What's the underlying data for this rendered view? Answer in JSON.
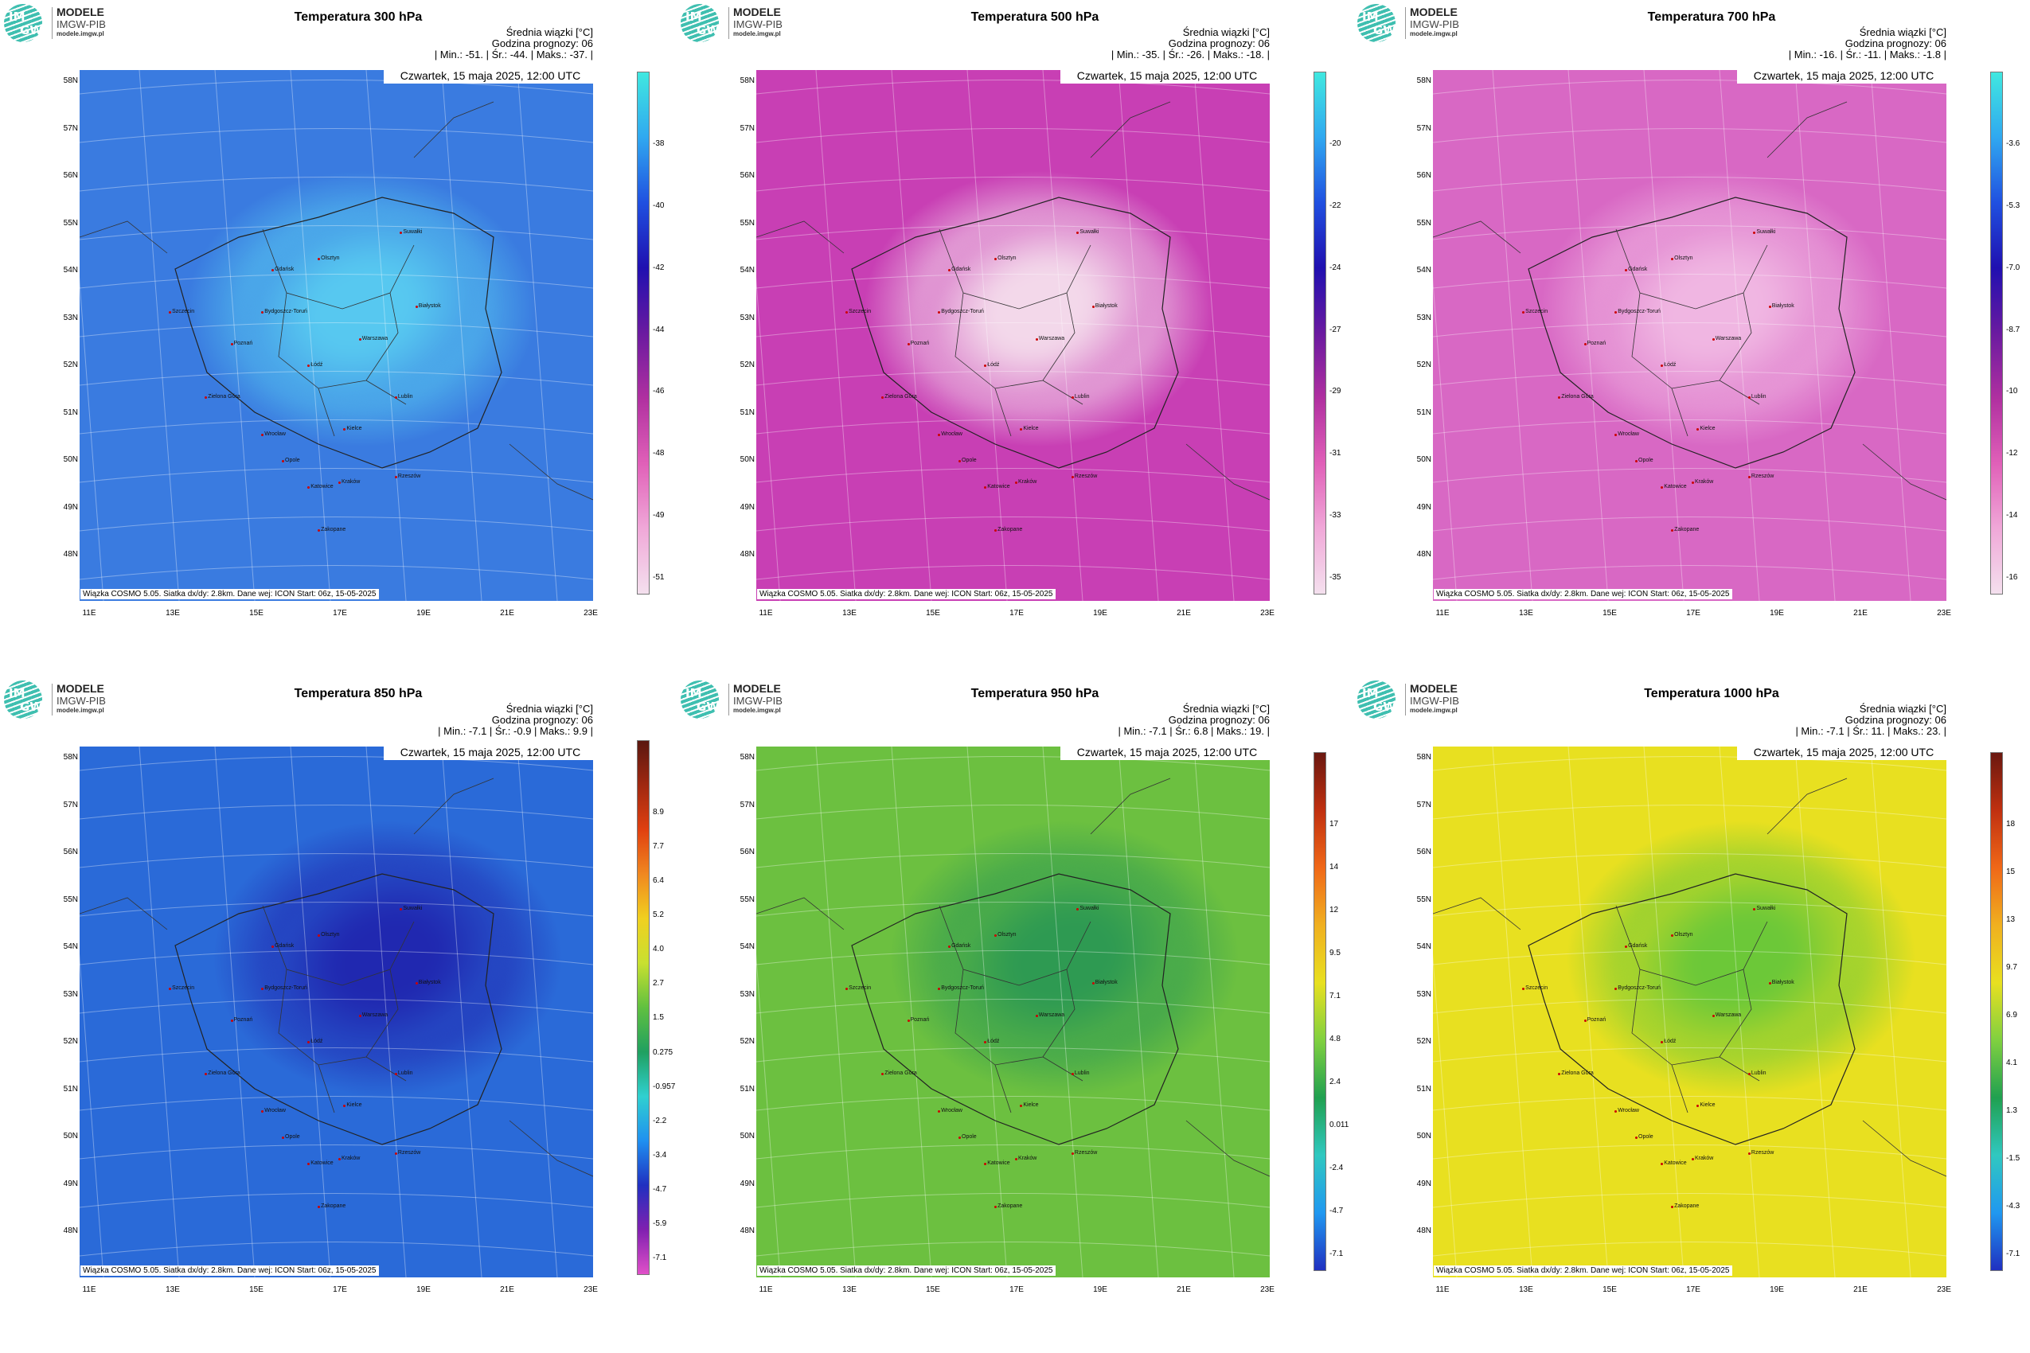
{
  "logo": {
    "line1": "MODELE",
    "line2": "IMGW-PIB",
    "line3": "modele.imgw.pl",
    "im": "IM",
    "gw": "GW"
  },
  "common": {
    "subtitle": "Średnia wiązki [°C]",
    "forecast_hour": "Godzina prognozy: 06",
    "date": "Czwartek, 15 maja 2025, 12:00 UTC",
    "footer": "Wiązka COSMO 5.05. Siatka dx/dy: 2.8km. Dane wej: ICON Start: 06z, 15-05-2025",
    "lat_labels": [
      "58N",
      "57N",
      "56N",
      "55N",
      "54N",
      "53N",
      "52N",
      "51N",
      "50N",
      "49N",
      "48N"
    ],
    "lon_labels": [
      "11E",
      "13E",
      "15E",
      "17E",
      "19E",
      "21E",
      "23E"
    ]
  },
  "cities": [
    "Gdańsk",
    "Olsztyn",
    "Suwałki",
    "Białystok",
    "Szczecin",
    "Bydgoszcz-Toruń",
    "Poznań",
    "Warszawa",
    "Łódź",
    "Zielona Góra",
    "Lublin",
    "Wrocław",
    "Kielce",
    "Opole",
    "Katowice",
    "Kraków",
    "Rzeszów",
    "Zakopane"
  ],
  "panels": [
    {
      "title": "Temperatura 300 hPa",
      "stats": "| Min.:   -51. | Śr.:   -44. | Maks.:   -37. |",
      "ticks": [
        "-38",
        "-40",
        "-42",
        "-44",
        "-46",
        "-48",
        "-49",
        "-51"
      ],
      "cmap": "cold",
      "colors": {
        "outer": "#e873c8",
        "mid": "#7a1fa0",
        "inner": "#3a7be0",
        "core": "#57c8f0"
      }
    },
    {
      "title": "Temperatura 500 hPa",
      "stats": "| Min.:   -35. | Śr.:   -26. | Maks.:   -18. |",
      "ticks": [
        "-20",
        "-22",
        "-24",
        "-27",
        "-29",
        "-31",
        "-33",
        "-35"
      ],
      "cmap": "cold",
      "colors": {
        "outer": "#1e8fe6",
        "mid": "#2b2cc0",
        "inner": "#c83fb4",
        "core": "#f3d8ea"
      }
    },
    {
      "title": "Temperatura 700 hPa",
      "stats": "| Min.:   -16. | Śr.:   -11. | Maks.:   -1.8 |",
      "ticks": [
        "-3.6",
        "-5.3",
        "-7.0",
        "-8.7",
        "-10",
        "-12",
        "-14",
        "-16"
      ],
      "cmap": "cold",
      "colors": {
        "outer": "#1f5fe0",
        "mid": "#7a20a8",
        "inner": "#d868c4",
        "core": "#f0b6e2"
      }
    },
    {
      "title": "Temperatura 850 hPa",
      "stats": "| Min.:   -7.1 | Śr.:   -0.9 | Maks.:   9.9 |",
      "ticks": [
        "8.9",
        "7.7",
        "6.4",
        "5.2",
        "4.0",
        "2.7",
        "1.5",
        "0.275",
        "-0.957",
        "-2.2",
        "-3.4",
        "-4.7",
        "-5.9",
        "-7.1"
      ],
      "cmap": "warm",
      "colors": {
        "outer": "#2fb070",
        "mid": "#20c8e8",
        "inner": "#2a6ad8",
        "core": "#2028b0"
      }
    },
    {
      "title": "Temperatura 950 hPa",
      "stats": "| Min.:   -7.1 | Śr.:   6.8 | Maks.:   19. |",
      "ticks": [
        "17",
        "14",
        "12",
        "9.5",
        "7.1",
        "4.8",
        "2.4",
        "0.011",
        "-2.4",
        "-4.7",
        "-7.1"
      ],
      "cmap": "warm",
      "colors": {
        "outer": "#e85a10",
        "mid": "#f0c820",
        "inner": "#6cc040",
        "core": "#2e9a52"
      }
    },
    {
      "title": "Temperatura 1000 hPa",
      "stats": "| Min.:   -7.1 | Śr.:   11. | Maks.:   23. |",
      "ticks": [
        "18",
        "15",
        "13",
        "9.7",
        "6.9",
        "4.1",
        "1.3",
        "-1.5",
        "-4.3",
        "-7.1"
      ],
      "cmap": "warm",
      "colors": {
        "outer": "#e05010",
        "mid": "#f0a020",
        "inner": "#e8e020",
        "core": "#6cc838"
      }
    }
  ]
}
